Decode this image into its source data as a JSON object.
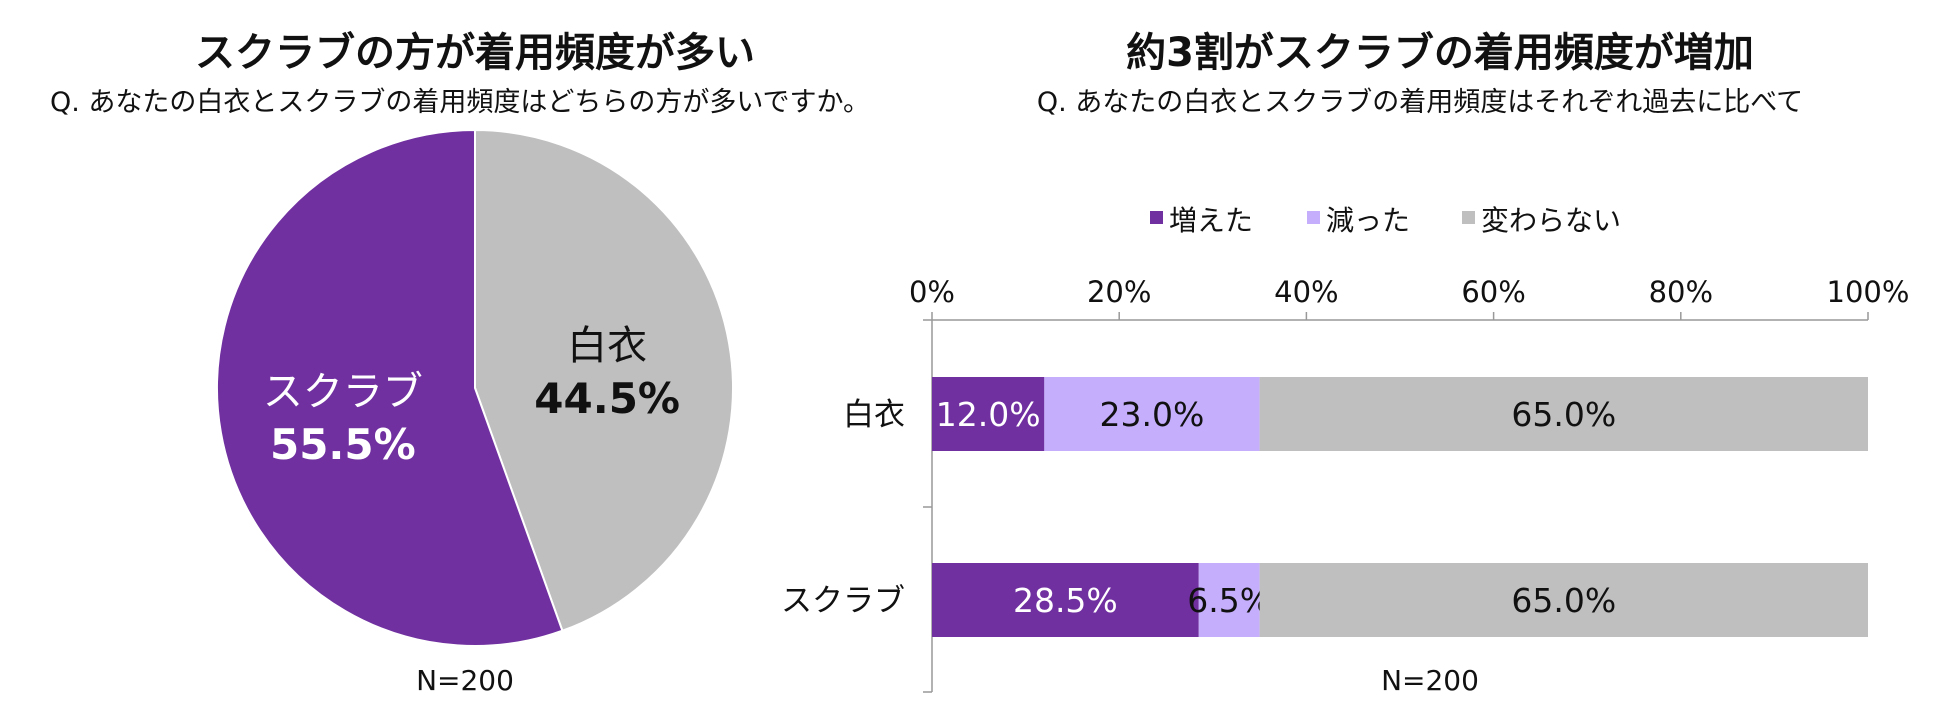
{
  "chart_data": [
    {
      "type": "pie",
      "title": "スクラブの方が着用頻度が多い",
      "subtitle": "Q. あなたの白衣とスクラブの着用頻度はどちらの方が多いですか。",
      "note": "N=200",
      "slices": [
        {
          "label": "白衣",
          "value": 44.5,
          "value_label": "44.5%",
          "color": "#bfbfbf",
          "text_color": "#111111"
        },
        {
          "label": "スクラブ",
          "value": 55.5,
          "value_label": "55.5%",
          "color": "#7030a0",
          "text_color": "#ffffff"
        }
      ]
    },
    {
      "type": "bar",
      "orientation": "horizontal",
      "stacked": true,
      "title": "約3割がスクラブの着用頻度が増加",
      "subtitle": "Q. あなたの白衣とスクラブの着用頻度はそれぞれ過去に比べて",
      "note": "N=200",
      "legend_position": "top",
      "categories": [
        "白衣",
        "スクラブ"
      ],
      "xlim": [
        0,
        100
      ],
      "x_ticks": [
        "0%",
        "20%",
        "40%",
        "60%",
        "80%",
        "100%"
      ],
      "series": [
        {
          "name": "増えた",
          "values": [
            12.0,
            28.5
          ],
          "labels": [
            "12.0%",
            "28.5%"
          ],
          "color": "#7030a0",
          "label_color": "#ffffff"
        },
        {
          "name": "減った",
          "values": [
            23.0,
            6.5
          ],
          "labels": [
            "23.0%",
            "6.5%"
          ],
          "color": "#c5aefc",
          "label_color": "#111111"
        },
        {
          "name": "変わらない",
          "values": [
            65.0,
            65.0
          ],
          "labels": [
            "65.0%",
            "65.0%"
          ],
          "color": "#bfbfbf",
          "label_color": "#111111"
        }
      ]
    }
  ]
}
